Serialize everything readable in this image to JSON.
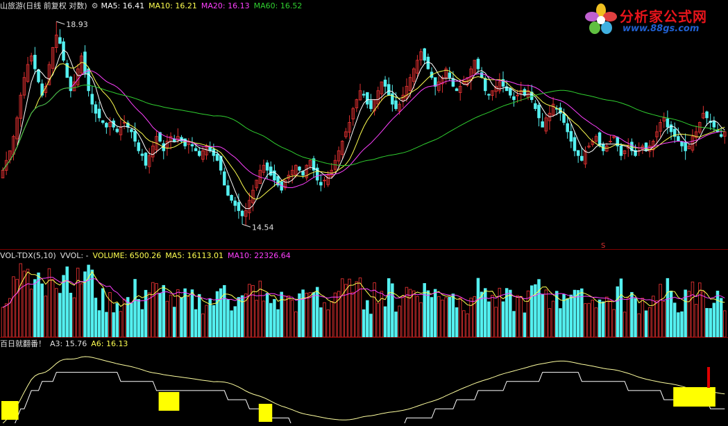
{
  "colors": {
    "up": "#e03030",
    "down": "#54f0f0",
    "ma5": "#ffffff",
    "ma10": "#ffff50",
    "ma20": "#ff40ff",
    "ma60": "#30d030",
    "label_white": "#e0e0e0",
    "indicator_line": "#ffffa0",
    "indicator_box": "#ffff00",
    "separator": "#800000"
  },
  "header": {
    "title": "山旅游(日线 前复权 对数)",
    "ma5": "MA5: 16.41",
    "ma10": "MA10: 16.21",
    "ma20": "MA20: 16.13",
    "ma60": "MA60: 16.52"
  },
  "price_panel": {
    "high_label": "18.93",
    "low_label": "14.54",
    "marker": "S"
  },
  "volume_header": {
    "name": "VOL-TDX(5,10)",
    "vvol": "VVOL: -",
    "volume": "VOLUME: 6500.26",
    "ma5": "MA5: 16113.01",
    "ma10": "MA10: 22326.64"
  },
  "indicator_header": {
    "name": "百日就翻番！",
    "a3": "A3: 15.76",
    "a6": "A6: 16.13"
  },
  "logo": {
    "brand": "分析家公式网",
    "url": "www.88gs.com",
    "flower_icon": "flower-icon"
  },
  "chart_data": {
    "type": "candlestick",
    "n_bars": 203,
    "price_range": [
      14.54,
      18.93
    ],
    "high": 18.93,
    "low": 14.54,
    "closes": [
      15.6,
      15.8,
      16.0,
      16.3,
      16.7,
      17.2,
      17.6,
      17.9,
      18.1,
      17.8,
      17.5,
      17.2,
      17.4,
      17.9,
      18.3,
      18.6,
      18.4,
      18.0,
      17.6,
      17.3,
      17.5,
      17.8,
      18.1,
      17.7,
      17.3,
      17.0,
      16.8,
      16.7,
      16.6,
      16.5,
      16.6,
      16.5,
      16.4,
      16.5,
      16.6,
      16.5,
      16.4,
      16.2,
      16.0,
      15.9,
      15.7,
      15.9,
      16.1,
      16.3,
      16.2,
      16.0,
      16.2,
      16.3,
      16.2,
      16.3,
      16.2,
      16.1,
      16.2,
      16.1,
      16.0,
      15.9,
      16.0,
      16.1,
      16.0,
      15.9,
      15.8,
      15.6,
      15.3,
      15.1,
      15.0,
      14.9,
      14.8,
      14.7,
      14.8,
      15.0,
      15.2,
      15.4,
      15.6,
      15.7,
      15.6,
      15.5,
      15.4,
      15.3,
      15.2,
      15.4,
      15.5,
      15.6,
      15.7,
      15.6,
      15.5,
      15.7,
      15.8,
      15.6,
      15.4,
      15.3,
      15.4,
      15.5,
      15.6,
      15.8,
      16.0,
      16.2,
      16.4,
      16.6,
      16.9,
      17.1,
      17.3,
      17.2,
      17.0,
      16.9,
      17.1,
      17.3,
      17.5,
      17.4,
      17.2,
      17.0,
      16.9,
      17.0,
      17.2,
      17.4,
      17.6,
      17.8,
      18.0,
      18.2,
      18.0,
      17.8,
      17.6,
      17.4,
      17.5,
      17.6,
      17.8,
      17.6,
      17.4,
      17.3,
      17.4,
      17.5,
      17.6,
      17.8,
      18.0,
      17.8,
      17.6,
      17.3,
      17.2,
      17.3,
      17.4,
      17.5,
      17.4,
      17.3,
      17.2,
      17.1,
      17.2,
      17.3,
      17.2,
      17.3,
      17.1,
      16.9,
      16.7,
      16.5,
      16.7,
      16.8,
      17.0,
      16.9,
      16.8,
      16.6,
      16.4,
      16.2,
      16.0,
      15.9,
      15.8,
      16.0,
      16.1,
      16.2,
      16.3,
      16.1,
      16.0,
      16.1,
      16.2,
      16.3,
      16.1,
      15.9,
      16.0,
      16.1,
      16.0,
      15.9,
      16.0,
      16.1,
      16.0,
      16.1,
      16.2,
      16.4,
      16.6,
      16.7,
      16.5,
      16.4,
      16.3,
      16.2,
      16.1,
      16.0,
      16.1,
      16.3,
      16.4,
      16.6,
      16.8,
      16.7,
      16.6,
      16.5,
      16.4,
      16.3,
      16.4
    ]
  }
}
